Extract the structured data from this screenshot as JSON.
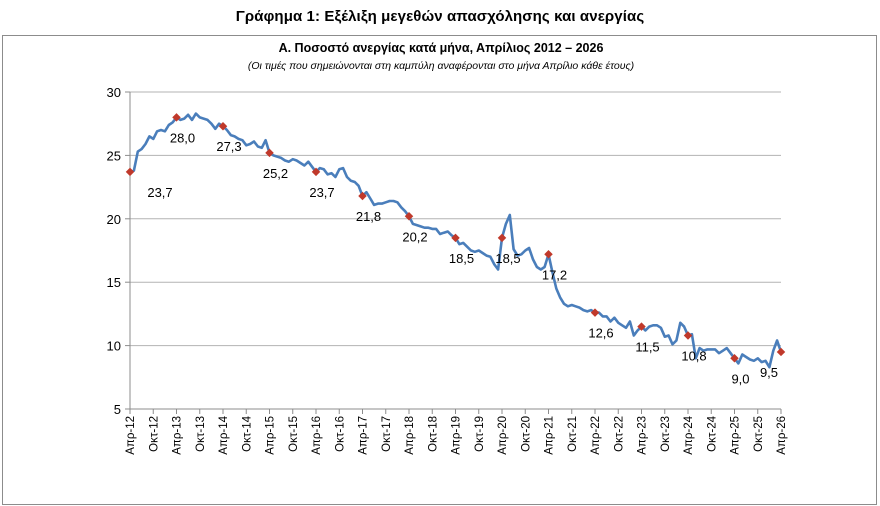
{
  "page": {
    "title": "Γράφημα 1: Εξέλιξη μεγεθών απασχόλησης και ανεργίας"
  },
  "chart_data": {
    "type": "line",
    "title": "Α. Ποσοστό ανεργίας κατά μήνα, Απρίλιος 2012 – 2026",
    "subtitle": "(Οι τιμές που σημειώνονται στη καμπύλη αναφέρονται στο μήνα Απρίλιο κάθε έτους)",
    "ylim": [
      5,
      30
    ],
    "yticks": [
      5,
      10,
      15,
      20,
      25,
      30
    ],
    "xlabels": [
      "Απρ-12",
      "Οκτ-12",
      "Απρ-13",
      "Οκτ-13",
      "Απρ-14",
      "Οκτ-14",
      "Απρ-15",
      "Οκτ-15",
      "Απρ-16",
      "Οκτ-16",
      "Απρ-17",
      "Οκτ-17",
      "Απρ-18",
      "Οκτ-18",
      "Απρ-19",
      "Οκτ-19",
      "Απρ-20",
      "Οκτ-20",
      "Απρ-21",
      "Οκτ-21",
      "Απρ-22",
      "Οκτ-22",
      "Απρ-23",
      "Οκτ-23",
      "Απρ-24",
      "Οκτ-24",
      "Απρ-25",
      "Οκτ-25",
      "Απρ-26"
    ],
    "grid": true,
    "line_color": "#4a7ebb",
    "marker_color": "#c0392b",
    "april_labels": [
      "23,7",
      "28,0",
      "27,3",
      "25,2",
      "23,7",
      "21,8",
      "20,2",
      "18,5",
      "18,5",
      "17,2",
      "12,6",
      "11,5",
      "10,8",
      "9,0",
      "9,5"
    ],
    "april_values": [
      23.7,
      28.0,
      27.3,
      25.2,
      23.7,
      21.8,
      20.2,
      18.5,
      18.5,
      17.2,
      12.6,
      11.5,
      10.8,
      9.0,
      9.5
    ],
    "monthly_values": [
      23.7,
      23.8,
      25.3,
      25.5,
      25.9,
      26.5,
      26.3,
      26.9,
      27.0,
      26.9,
      27.4,
      27.6,
      28.0,
      27.8,
      27.9,
      28.2,
      27.8,
      28.3,
      28.0,
      27.9,
      27.8,
      27.5,
      27.1,
      27.5,
      27.3,
      27.0,
      26.6,
      26.5,
      26.3,
      26.2,
      25.8,
      25.9,
      26.1,
      25.7,
      25.6,
      26.2,
      25.2,
      25.0,
      24.9,
      24.8,
      24.6,
      24.5,
      24.7,
      24.6,
      24.4,
      24.2,
      24.5,
      24.1,
      23.7,
      24.0,
      23.9,
      23.5,
      23.6,
      23.3,
      23.9,
      24.0,
      23.3,
      23.0,
      22.9,
      22.6,
      21.8,
      22.1,
      21.6,
      21.1,
      21.2,
      21.2,
      21.3,
      21.4,
      21.4,
      21.3,
      20.9,
      20.6,
      20.2,
      19.6,
      19.5,
      19.4,
      19.3,
      19.3,
      19.2,
      19.2,
      18.8,
      18.9,
      19.0,
      18.7,
      18.5,
      18.0,
      18.1,
      17.8,
      17.5,
      17.4,
      17.5,
      17.3,
      17.1,
      17.0,
      16.4,
      16.0,
      18.5,
      19.6,
      20.3,
      17.6,
      17.1,
      17.2,
      17.5,
      17.7,
      16.8,
      16.2,
      16.0,
      16.2,
      17.2,
      15.8,
      14.5,
      13.8,
      13.3,
      13.1,
      13.2,
      13.1,
      13.0,
      12.8,
      12.7,
      12.8,
      12.6,
      12.6,
      12.3,
      12.3,
      11.9,
      12.2,
      11.8,
      11.6,
      11.4,
      11.9,
      10.8,
      11.2,
      11.5,
      11.2,
      11.5,
      11.6,
      11.6,
      11.4,
      10.7,
      10.8,
      10.1,
      10.4,
      11.8,
      11.5,
      10.8,
      10.9,
      9.0,
      9.8,
      9.6,
      9.7,
      9.7,
      9.7,
      9.4,
      9.6,
      9.8,
      9.4,
      9.0,
      8.6,
      9.3,
      9.1,
      8.9,
      8.8,
      9.0,
      8.7,
      8.8,
      8.3,
      9.6,
      10.4,
      9.5
    ]
  }
}
